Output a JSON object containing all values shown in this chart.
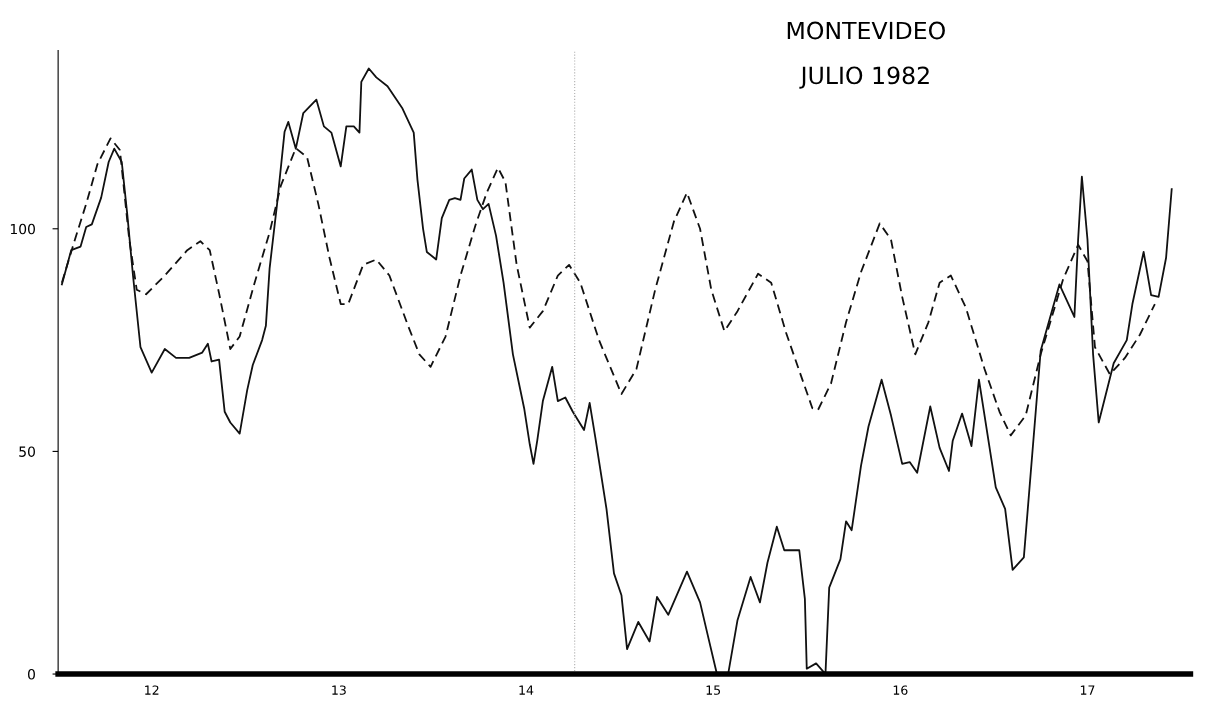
{
  "chart_data": {
    "type": "line",
    "title": "MONTEVIDEO",
    "subtitle": "JULIO 1982",
    "xlim": [
      12,
      18.05
    ],
    "ylim": [
      0,
      140
    ],
    "yticks": [
      0,
      50,
      100
    ],
    "xticks": [
      {
        "value": 12.5,
        "label": "12"
      },
      {
        "value": 13.5,
        "label": "13"
      },
      {
        "value": 14.5,
        "label": "14"
      },
      {
        "value": 15.5,
        "label": "15"
      },
      {
        "value": 16.5,
        "label": "16"
      },
      {
        "value": 17.5,
        "label": "17"
      }
    ],
    "grid": false,
    "legend": false,
    "ref_lines": [
      {
        "axis": "x",
        "value": 14.76,
        "color": "#b0b0b0",
        "line_style": "dotted"
      }
    ],
    "series": [
      {
        "color": "#111111",
        "line_style": "solid",
        "x": [
          12.02,
          12.07,
          12.12,
          12.15,
          12.18,
          12.23,
          12.27,
          12.3,
          12.34,
          12.37,
          12.4,
          12.44,
          12.5,
          12.57,
          12.63,
          12.7,
          12.77,
          12.8,
          12.82,
          12.86,
          12.89,
          12.92,
          12.97,
          13.01,
          13.04,
          13.09,
          13.11,
          13.13,
          13.17,
          13.21,
          13.23,
          13.27,
          13.31,
          13.38,
          13.42,
          13.46,
          13.51,
          13.54,
          13.58,
          13.61,
          13.62,
          13.66,
          13.7,
          13.76,
          13.84,
          13.9,
          13.92,
          13.95,
          13.97,
          14.02,
          14.05,
          14.09,
          14.12,
          14.15,
          14.17,
          14.21,
          14.24,
          14.27,
          14.3,
          14.34,
          14.38,
          14.43,
          14.49,
          14.52,
          14.54,
          14.56,
          14.59,
          14.64,
          14.67,
          14.71,
          14.75,
          14.81,
          14.84,
          14.87,
          14.93,
          14.97,
          15.01,
          15.04,
          15.1,
          15.16,
          15.2,
          15.26,
          15.36,
          15.43,
          15.47,
          15.52,
          15.55,
          15.58,
          15.63,
          15.7,
          15.75,
          15.79,
          15.84,
          15.88,
          15.96,
          15.99,
          16.0,
          16.05,
          16.1,
          16.12,
          16.18,
          16.21,
          16.24,
          16.29,
          16.33,
          16.4,
          16.45,
          16.51,
          16.55,
          16.59,
          16.66,
          16.71,
          16.76,
          16.78,
          16.83,
          16.88,
          16.92,
          17.01,
          17.06,
          17.1,
          17.16,
          17.25,
          17.35,
          17.43,
          17.45,
          17.47,
          17.5,
          17.53,
          17.56,
          17.64,
          17.71,
          17.74,
          17.8,
          17.84,
          17.88,
          17.92,
          17.95
        ],
        "values": [
          87.5,
          95.2,
          96,
          100.4,
          101,
          107,
          115,
          118,
          115,
          103,
          89.5,
          73.4,
          67.7,
          73,
          71,
          71,
          72.2,
          74.2,
          70.2,
          70.6,
          58.9,
          56.5,
          54,
          63.7,
          69.4,
          75,
          78.2,
          91.1,
          105.6,
          121.8,
          124,
          118,
          126,
          129,
          123,
          121.6,
          114,
          123,
          123,
          121.6,
          133,
          136,
          134,
          132,
          127,
          121.6,
          111,
          100,
          94.8,
          93.1,
          102.4,
          106.5,
          106.9,
          106.5,
          111.3,
          113.3,
          106.5,
          104.4,
          105.6,
          98.4,
          87.9,
          71.8,
          59.7,
          51.6,
          47.2,
          52.4,
          61.3,
          69,
          61.3,
          62.1,
          58.9,
          54.8,
          60.9,
          53.2,
          37.1,
          22.6,
          17.7,
          5.6,
          11.7,
          7.3,
          17.3,
          13.3,
          23,
          16.1,
          8.9,
          0,
          0,
          0,
          12.1,
          21.8,
          16.1,
          25,
          33.1,
          27.8,
          27.8,
          16.9,
          1.2,
          2.4,
          0,
          19.4,
          25.8,
          34.3,
          32.3,
          46.8,
          55.6,
          66.1,
          58.1,
          47.2,
          47.6,
          45.2,
          60.1,
          50.8,
          45.6,
          52.4,
          58.5,
          51.2,
          66.1,
          41.9,
          37.1,
          23.4,
          26.2,
          72.6,
          87.5,
          80.2,
          97.6,
          111.7,
          97.6,
          71.8,
          56.5,
          69.8,
          75,
          83.1,
          94.8,
          85.1,
          84.7,
          93.5,
          108.9
        ]
      },
      {
        "color": "#111111",
        "line_style": "dashed",
        "x": [
          12.02,
          12.09,
          12.15,
          12.21,
          12.28,
          12.33,
          12.38,
          12.42,
          12.47,
          12.57,
          12.69,
          12.76,
          12.81,
          12.86,
          12.92,
          12.97,
          13.05,
          13.13,
          13.19,
          13.27,
          13.33,
          13.39,
          13.45,
          13.51,
          13.55,
          13.63,
          13.7,
          13.77,
          13.87,
          13.93,
          13.99,
          14.07,
          14.15,
          14.23,
          14.29,
          14.35,
          14.39,
          14.45,
          14.52,
          14.59,
          14.67,
          14.73,
          14.79,
          14.89,
          15.01,
          15.09,
          15.19,
          15.29,
          15.36,
          15.43,
          15.49,
          15.56,
          15.63,
          15.74,
          15.81,
          15.89,
          15.97,
          16.03,
          16.06,
          16.13,
          16.21,
          16.29,
          16.39,
          16.45,
          16.51,
          16.58,
          16.65,
          16.71,
          16.77,
          16.85,
          16.95,
          17.03,
          17.09,
          17.17,
          17.25,
          17.37,
          17.45,
          17.5,
          17.54,
          17.62,
          17.7,
          17.78,
          17.86
        ],
        "values": [
          87.9,
          97.6,
          105.6,
          114.5,
          120.3,
          117.7,
          97.6,
          86.3,
          85.3,
          89.5,
          95.2,
          97.2,
          95.2,
          85.5,
          73,
          75.8,
          87.9,
          99.2,
          109.7,
          118.1,
          116.1,
          105.6,
          93.5,
          83.1,
          83.1,
          91.9,
          93.1,
          89.5,
          78.2,
          71.8,
          69,
          75.8,
          89.5,
          100.8,
          108.1,
          113.7,
          110.5,
          91.9,
          77.8,
          81.5,
          89.5,
          91.9,
          87.9,
          75,
          62.9,
          68.5,
          86.3,
          101.6,
          108.1,
          100,
          86.3,
          77,
          81.5,
          89.9,
          87.9,
          76.6,
          66.9,
          59.7,
          59.3,
          65.3,
          79,
          90.3,
          101.2,
          97.6,
          84.7,
          71.8,
          79,
          87.9,
          89.5,
          82.3,
          68.5,
          58.9,
          53.6,
          58.1,
          71.8,
          88.7,
          96.4,
          92.7,
          73.4,
          67.3,
          71,
          76.2,
          83.1
        ]
      }
    ]
  }
}
